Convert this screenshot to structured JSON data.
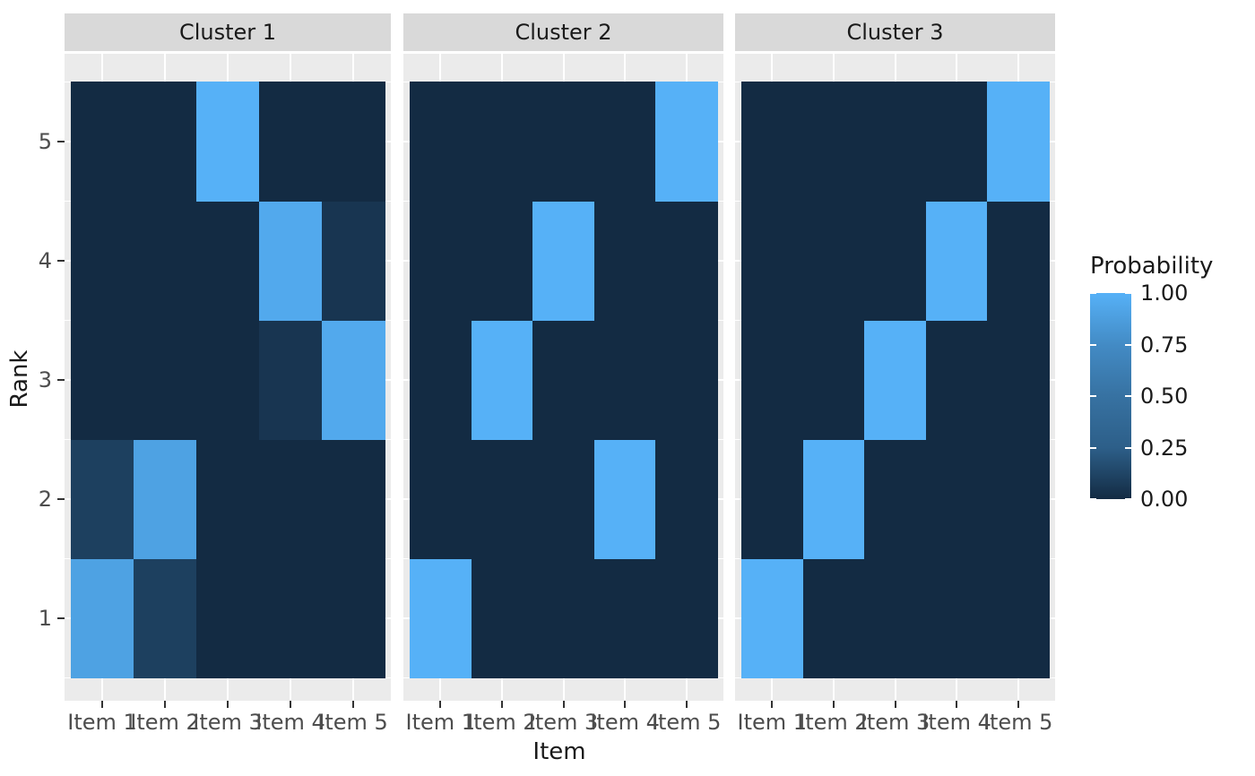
{
  "figure": {
    "xlabel": "Item",
    "ylabel": "Rank",
    "colors": {
      "background": "#FFFFFF",
      "panel_background": "#EBEBEB",
      "strip_background": "#D9D9D9",
      "grid": "#FFFFFF",
      "axis_tick": "#333333",
      "tick_label": "#4D4D4D",
      "title_text": "#1A1A1A"
    }
  },
  "chart_data": {
    "type": "heatmap",
    "xlabel": "Item",
    "ylabel": "Rank",
    "x_categories": [
      "Item 1",
      "Item 2",
      "Item 3",
      "Item 4",
      "Item 5"
    ],
    "y_categories": [
      "1",
      "2",
      "3",
      "4",
      "5"
    ],
    "color_low": "#132B43",
    "color_high": "#56B1F7",
    "value_range": [
      0,
      1
    ],
    "facets": [
      {
        "label": "Cluster 1",
        "rows_rank_1_to_5": [
          [
            0.9,
            0.1,
            0,
            0,
            0
          ],
          [
            0.1,
            0.9,
            0,
            0,
            0
          ],
          [
            0,
            0,
            0,
            0.05,
            0.95
          ],
          [
            0,
            0,
            0,
            0.95,
            0.05
          ],
          [
            0,
            0,
            1,
            0,
            0
          ]
        ]
      },
      {
        "label": "Cluster 2",
        "rows_rank_1_to_5": [
          [
            1,
            0,
            0,
            0,
            0
          ],
          [
            0,
            0,
            0,
            1,
            0
          ],
          [
            0,
            1,
            0,
            0,
            0
          ],
          [
            0,
            0,
            1,
            0,
            0
          ],
          [
            0,
            0,
            0,
            0,
            1
          ]
        ]
      },
      {
        "label": "Cluster 3",
        "rows_rank_1_to_5": [
          [
            1,
            0,
            0,
            0,
            0
          ],
          [
            0,
            1,
            0,
            0,
            0
          ],
          [
            0,
            0,
            1,
            0,
            0
          ],
          [
            0,
            0,
            0,
            1,
            0
          ],
          [
            0,
            0,
            0,
            0,
            1
          ]
        ]
      }
    ],
    "legend": {
      "title": "Probability",
      "tick_labels": [
        "1.00",
        "0.75",
        "0.50",
        "0.25",
        "0.00"
      ],
      "tick_values": [
        1.0,
        0.75,
        0.5,
        0.25,
        0.0
      ],
      "position": "right"
    },
    "layout_hints": {
      "grid": "on",
      "facet_strips": "top",
      "x_tick_labels_overlap": true
    }
  }
}
